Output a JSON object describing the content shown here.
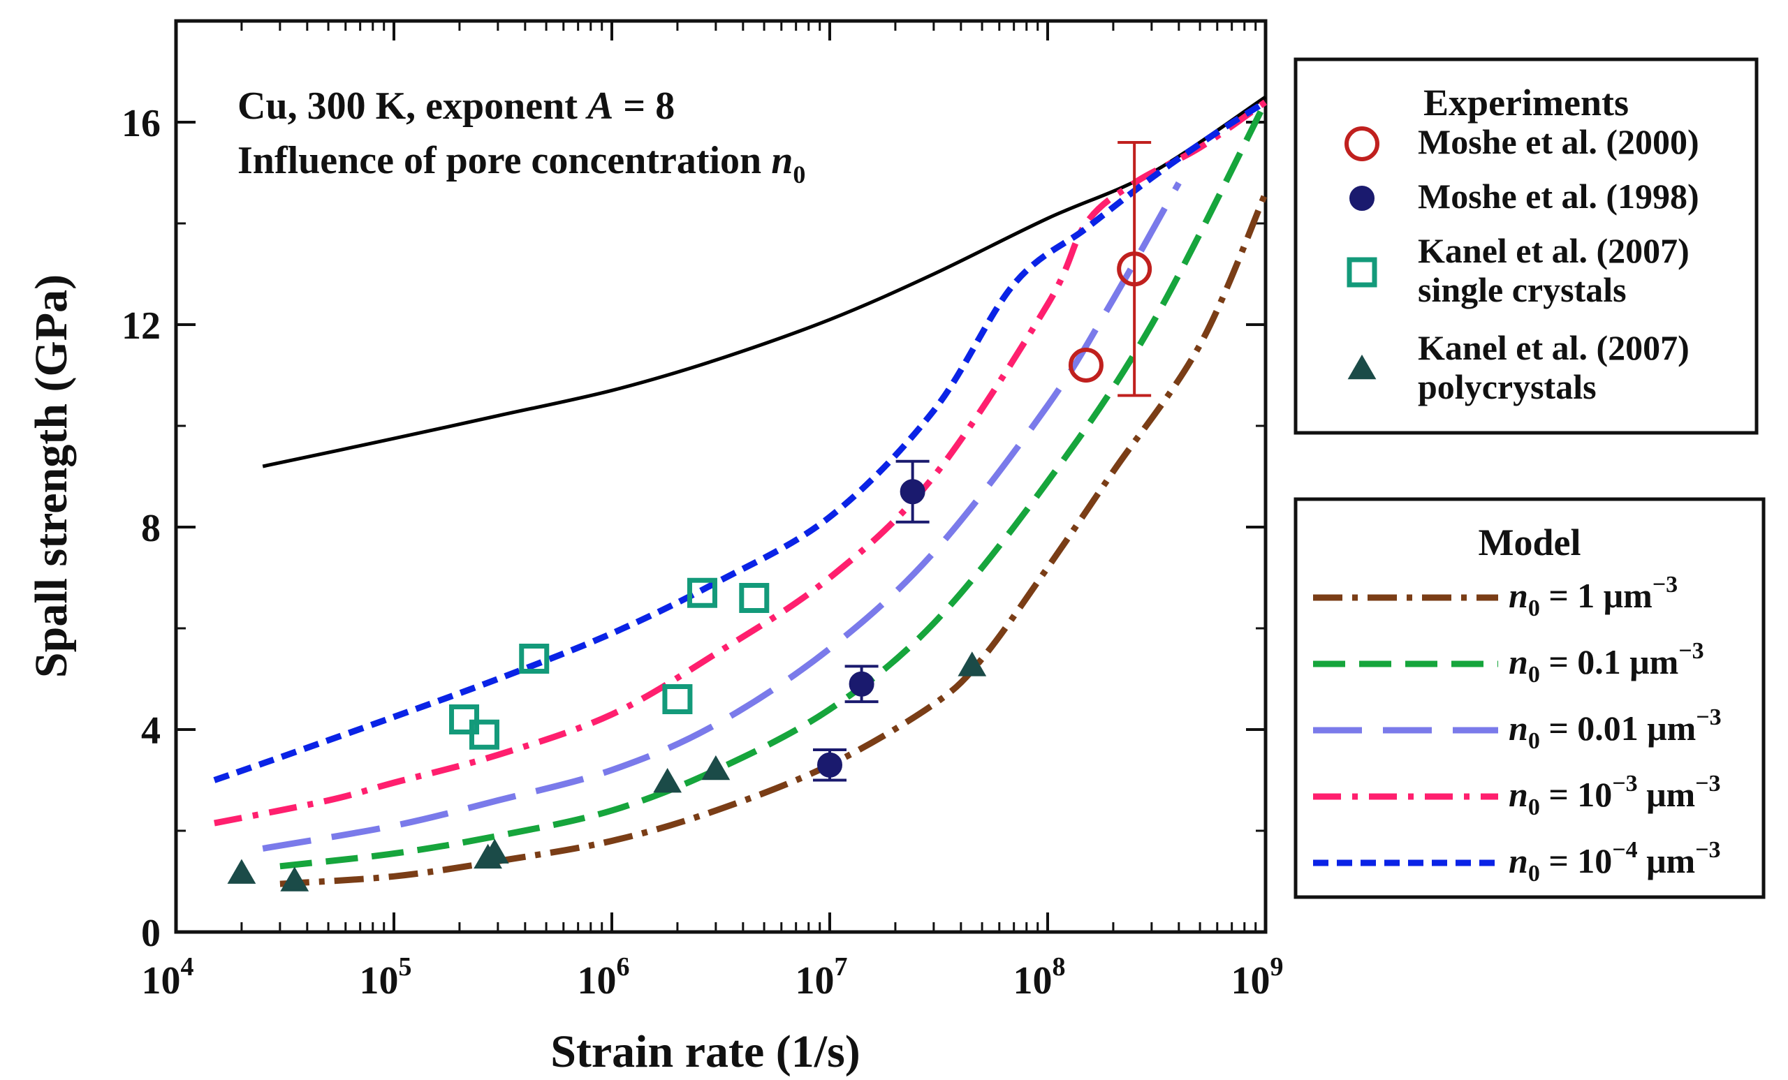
{
  "chart_data": {
    "type": "scatter",
    "title_line1_parts": [
      "Cu, 300 K, exponent ",
      "A",
      " = 8"
    ],
    "title_line2_parts": [
      "Influence of pore concentration ",
      "n",
      "0"
    ],
    "xlabel": "Strain rate (1/s)",
    "ylabel": "Spall strength (GPa)",
    "xscale": "log",
    "xlim": [
      10000,
      1000000000
    ],
    "ylim": [
      0,
      18
    ],
    "xticks": [
      {
        "value": 10000,
        "base": "10",
        "exp": "4"
      },
      {
        "value": 100000,
        "base": "10",
        "exp": "5"
      },
      {
        "value": 1000000,
        "base": "10",
        "exp": "6"
      },
      {
        "value": 10000000,
        "base": "10",
        "exp": "7"
      },
      {
        "value": 100000000,
        "base": "10",
        "exp": "8"
      },
      {
        "value": 1000000000,
        "base": "10",
        "exp": "9"
      }
    ],
    "yticks": [
      {
        "value": 0,
        "label": "0"
      },
      {
        "value": 4,
        "label": "4"
      },
      {
        "value": 8,
        "label": "8"
      },
      {
        "value": 12,
        "label": "12"
      },
      {
        "value": 16,
        "label": "16"
      }
    ],
    "legend_experiments": {
      "title": "Experiments",
      "entries": [
        {
          "key": "moshe2000",
          "lines": [
            "Moshe et al. (2000)"
          ],
          "marker": "open-circle",
          "color": "#c0201e"
        },
        {
          "key": "moshe1998",
          "lines": [
            "Moshe et al. (1998)"
          ],
          "marker": "filled-circle",
          "color": "#1a1a6e"
        },
        {
          "key": "kanel_single",
          "lines": [
            "Kanel et al. (2007)",
            "single crystals"
          ],
          "marker": "open-square",
          "color": "#139a7a"
        },
        {
          "key": "kanel_poly",
          "lines": [
            "Kanel et al. (2007)",
            "polycrystals"
          ],
          "marker": "filled-triangle",
          "color": "#1b4b48"
        }
      ]
    },
    "legend_model": {
      "title": "Model",
      "entries": [
        {
          "key": "n1",
          "prefix": "n",
          "sub": "0",
          "value": " = 1 μm",
          "exp": "−3"
        },
        {
          "key": "n01",
          "prefix": "n",
          "sub": "0",
          "value": " = 0.1 μm",
          "exp": "−3"
        },
        {
          "key": "n001",
          "prefix": "n",
          "sub": "0",
          "value": " = 0.01 μm",
          "exp": "−3"
        },
        {
          "key": "n1e3",
          "prefix": "n",
          "sub": "0",
          "value": " = 10",
          "vexp": "−3",
          "unit": " μm",
          "exp": "−3"
        },
        {
          "key": "n1e4",
          "prefix": "n",
          "sub": "0",
          "value": " = 10",
          "vexp": "−4",
          "unit": " μm",
          "exp": "−3"
        }
      ]
    },
    "series": [
      {
        "name": "limit (solid)",
        "key": "limit",
        "color": "#000000",
        "dash": "",
        "width": 5,
        "x": [
          25000,
          100000,
          300000,
          1000000,
          3000000,
          10000000,
          30000000,
          100000000,
          300000000,
          1000000000
        ],
        "y": [
          9.2,
          9.75,
          10.2,
          10.7,
          11.3,
          12.1,
          13.0,
          14.1,
          15.0,
          16.5
        ]
      },
      {
        "name": "n0 = 1 μm^-3",
        "key": "n1",
        "color": "#7a3d16",
        "dash": "42 14 8 14",
        "width": 9,
        "x": [
          30000,
          100000,
          300000,
          1000000,
          3000000,
          10000000,
          30000000,
          50000000,
          100000000,
          200000000,
          500000000,
          1000000000
        ],
        "y": [
          0.95,
          1.1,
          1.4,
          1.8,
          2.4,
          3.3,
          4.5,
          5.4,
          7.2,
          9.1,
          11.6,
          14.6
        ]
      },
      {
        "name": "n0 = 0.1 μm^-3",
        "key": "n01",
        "color": "#16a53c",
        "dash": "46 20",
        "width": 9,
        "x": [
          30000,
          100000,
          300000,
          1000000,
          3000000,
          10000000,
          30000000,
          100000000,
          300000000,
          1000000000
        ],
        "y": [
          1.3,
          1.55,
          1.9,
          2.4,
          3.2,
          4.4,
          6.1,
          8.9,
          12.0,
          16.4
        ]
      },
      {
        "name": "n0 = 0.01 μm^-3",
        "key": "n001",
        "color": "#7a7aea",
        "dash": "70 30",
        "width": 9,
        "x": [
          25000,
          100000,
          300000,
          1000000,
          3000000,
          10000000,
          30000000,
          100000000,
          200000000,
          400000000
        ],
        "y": [
          1.65,
          2.1,
          2.6,
          3.2,
          4.1,
          5.6,
          7.5,
          10.4,
          12.5,
          14.8
        ]
      },
      {
        "name": "n0 = 10^-3 μm^-3",
        "key": "n1e3",
        "color": "#ff1f6e",
        "dash": "40 16 8 16",
        "width": 9,
        "x": [
          15000,
          50000,
          100000,
          300000,
          1000000,
          3000000,
          10000000,
          30000000,
          100000000,
          150000000,
          250000000,
          500000000,
          1000000000
        ],
        "y": [
          2.15,
          2.6,
          2.95,
          3.5,
          4.3,
          5.5,
          7.0,
          9.0,
          12.4,
          14.0,
          14.8,
          15.5,
          16.4
        ]
      },
      {
        "name": "n0 = 10^-4 μm^-3",
        "key": "n1e4",
        "color": "#0a23e6",
        "dash": "22 12",
        "width": 9,
        "x": [
          15000,
          30000,
          100000,
          300000,
          1000000,
          3000000,
          10000000,
          30000000,
          70000000,
          150000000,
          300000000,
          600000000,
          1000000000
        ],
        "y": [
          3.0,
          3.45,
          4.25,
          5.0,
          5.9,
          6.9,
          8.2,
          10.3,
          12.8,
          13.9,
          14.9,
          15.8,
          16.4
        ]
      }
    ],
    "points": {
      "moshe2000": [
        {
          "x": 150000000,
          "y": 11.2
        },
        {
          "x": 250000000,
          "y": 13.1,
          "err_lo": 10.6,
          "err_hi": 15.6
        }
      ],
      "moshe1998": [
        {
          "x": 10000000,
          "y": 3.3,
          "err_lo": 3.0,
          "err_hi": 3.6
        },
        {
          "x": 14000000,
          "y": 4.9,
          "err_lo": 4.55,
          "err_hi": 5.25
        },
        {
          "x": 24000000,
          "y": 8.7,
          "err_lo": 8.1,
          "err_hi": 9.3
        }
      ],
      "kanel_single": [
        {
          "x": 210000,
          "y": 4.2
        },
        {
          "x": 260000,
          "y": 3.9
        },
        {
          "x": 440000,
          "y": 5.4
        },
        {
          "x": 2000000,
          "y": 4.6
        },
        {
          "x": 2600000,
          "y": 6.7
        },
        {
          "x": 4500000,
          "y": 6.6
        }
      ],
      "kanel_poly": [
        {
          "x": 20000,
          "y": 1.15
        },
        {
          "x": 35000,
          "y": 1.0
        },
        {
          "x": 270000,
          "y": 1.45
        },
        {
          "x": 290000,
          "y": 1.55
        },
        {
          "x": 1800000,
          "y": 2.95
        },
        {
          "x": 3000000,
          "y": 3.2
        },
        {
          "x": 45000000,
          "y": 5.25
        }
      ]
    }
  }
}
